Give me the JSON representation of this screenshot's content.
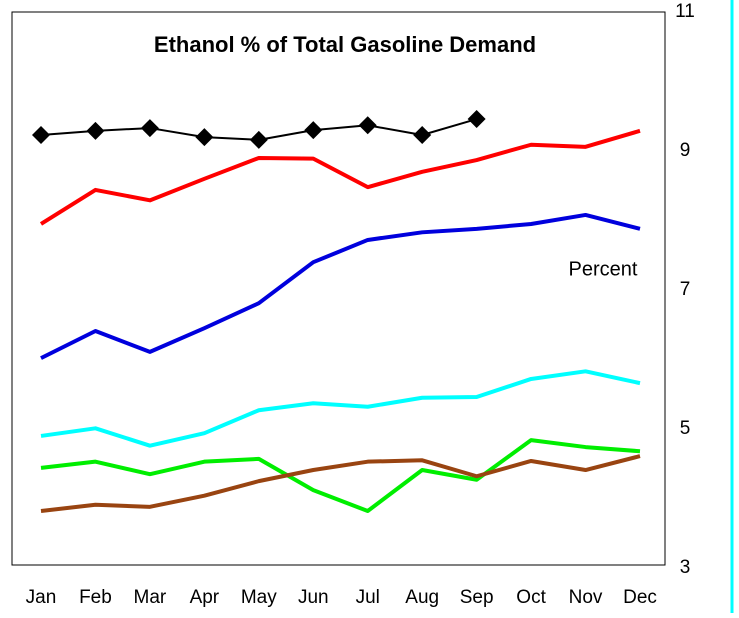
{
  "chart_data": {
    "type": "line",
    "title": "Ethanol % of Total Gasoline Demand",
    "ylabel": "Percent",
    "categories": [
      "Jan",
      "Feb",
      "Mar",
      "Apr",
      "May",
      "Jun",
      "Jul",
      "Aug",
      "Sep",
      "Oct",
      "Nov",
      "Dec"
    ],
    "series": [
      {
        "color": "#000000",
        "marker": "diamond",
        "values": [
          9.23,
          9.29,
          9.33,
          9.2,
          9.16,
          9.3,
          9.37,
          9.23,
          9.46,
          null,
          null,
          null
        ]
      },
      {
        "color": "#ff0000",
        "values": [
          7.95,
          8.44,
          8.29,
          8.6,
          8.9,
          8.89,
          8.48,
          8.7,
          8.87,
          9.09,
          9.06,
          9.29
        ]
      },
      {
        "color": "#0000dd",
        "values": [
          6.02,
          6.41,
          6.11,
          6.45,
          6.81,
          7.4,
          7.72,
          7.83,
          7.88,
          7.95,
          8.08,
          7.88
        ]
      },
      {
        "color": "#00ffff",
        "values": [
          4.9,
          5.01,
          4.76,
          4.94,
          5.27,
          5.37,
          5.32,
          5.45,
          5.46,
          5.72,
          5.83,
          5.66
        ]
      },
      {
        "color": "#00ee00",
        "values": [
          4.44,
          4.53,
          4.35,
          4.53,
          4.57,
          4.12,
          3.82,
          4.41,
          4.27,
          4.84,
          4.74,
          4.68
        ]
      },
      {
        "color": "#994411",
        "values": [
          3.82,
          3.91,
          3.88,
          4.04,
          4.25,
          4.41,
          4.53,
          4.55,
          4.32,
          4.54,
          4.41,
          4.61
        ]
      }
    ],
    "ylim": [
      3,
      11
    ],
    "yticks": [
      3,
      5,
      7,
      9,
      11
    ],
    "y_axis_side": "right",
    "grid": false
  }
}
